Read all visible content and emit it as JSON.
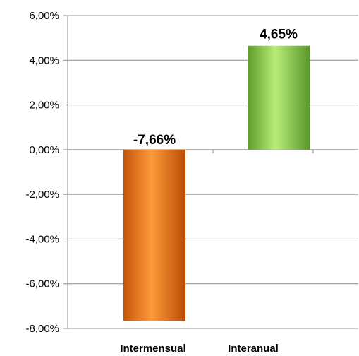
{
  "chart_data": {
    "type": "bar",
    "title": "",
    "xlabel": "",
    "ylabel": "",
    "categories": [
      "Intermensual",
      "Interanual"
    ],
    "values": [
      -7.66,
      4.65
    ],
    "data_labels": [
      "-7,66%",
      "4,65%"
    ],
    "ylim": [
      -8,
      6
    ],
    "yticks": [
      6,
      4,
      2,
      0,
      -2,
      -4,
      -6,
      -8
    ],
    "ytick_labels": [
      "6,00%",
      "4,00%",
      "2,00%",
      "0,00%",
      "-2,00%",
      "-4,00%",
      "-6,00%",
      "-8,00%"
    ],
    "grid": true,
    "legend": "none",
    "colors": {
      "bar_negative": "#f07a1c",
      "bar_positive": "#8fd14f",
      "gridline": "#8c8c8c",
      "axis": "#8c8c8c"
    }
  }
}
